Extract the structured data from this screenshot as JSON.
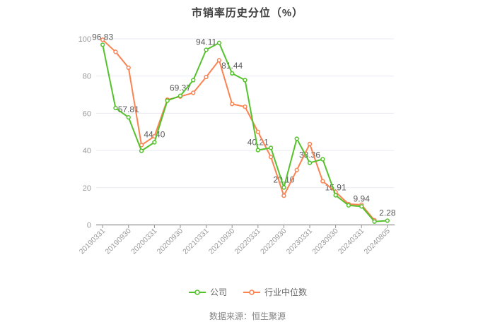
{
  "header": {
    "title": "市销率历史分位（%）"
  },
  "footer": {
    "source": "数据来源：恒生聚源"
  },
  "legend": {
    "items": [
      {
        "label": "公司",
        "color": "#55c22d"
      },
      {
        "label": "行业中位数",
        "color": "#fb8351"
      }
    ]
  },
  "colors": {
    "background": "#ffffff",
    "grid": "#e8eaf1",
    "axis": "#909090",
    "axis_text": "#999999",
    "data_label": "#5a5a5a",
    "title": "#404040",
    "legend_text": "#666666",
    "source_text": "#848484",
    "company": "#55c22d",
    "industry": "#fb8351"
  },
  "chart_data": {
    "type": "line",
    "title": "市销率历史分位（%）",
    "xlabel": "",
    "ylabel": "",
    "ylim": [
      0,
      100
    ],
    "y_ticks": [
      0,
      20,
      40,
      60,
      80,
      100
    ],
    "grid": true,
    "legend_position": "bottom",
    "x_tick_labels": [
      "20190331",
      "20190930",
      "20200331",
      "20200930",
      "20210331",
      "20210930",
      "20220331",
      "20220930",
      "20230331",
      "20230930",
      "20240331",
      "20240805"
    ],
    "x_tick_every_n_points": 2,
    "series": [
      {
        "name": "公司",
        "color": "#55c22d",
        "values": [
          96.83,
          62.8,
          57.81,
          39.8,
          44.4,
          66.8,
          69.37,
          77.8,
          94.11,
          97.8,
          81.44,
          77.8,
          40.21,
          41.4,
          20.1,
          46.3,
          33.36,
          35.3,
          15.91,
          10.5,
          9.94,
          1.8,
          2.28
        ],
        "point_labels": [
          "96.83",
          null,
          "57.81",
          null,
          "44.40",
          null,
          "69.37",
          null,
          "94.11",
          null,
          "81.44",
          null,
          "40.21",
          null,
          "20.10",
          null,
          "33.36",
          null,
          "15.91",
          null,
          "9.94",
          null,
          "2.28"
        ]
      },
      {
        "name": "行业中位数",
        "color": "#fb8351",
        "values": [
          99.5,
          93.0,
          84.5,
          42.9,
          47.6,
          67.3,
          69.0,
          71.0,
          79.5,
          88.5,
          65.0,
          63.5,
          50.0,
          36.5,
          15.7,
          29.5,
          43.5,
          23.5,
          17.7,
          11.2,
          10.8,
          2.5
        ],
        "point_labels": []
      }
    ]
  }
}
